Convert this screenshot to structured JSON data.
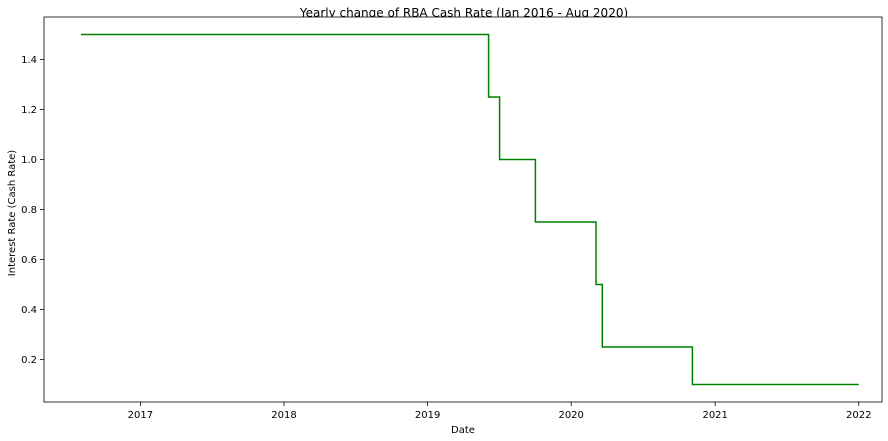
{
  "chart_data": {
    "type": "line",
    "title": "Yearly change of RBA Cash Rate (Jan 2016 - Aug 2020)",
    "xlabel": "Date",
    "ylabel": "Interest Rate (Cash Rate)",
    "xlim": [
      "2016-05-01",
      "2022-03-01"
    ],
    "ylim": [
      0.03,
      1.57
    ],
    "x_ticks": [
      {
        "date": "2017-01-01",
        "label": "2017"
      },
      {
        "date": "2018-01-01",
        "label": "2018"
      },
      {
        "date": "2019-01-01",
        "label": "2019"
      },
      {
        "date": "2020-01-01",
        "label": "2020"
      },
      {
        "date": "2021-01-01",
        "label": "2021"
      },
      {
        "date": "2022-01-01",
        "label": "2022"
      }
    ],
    "y_ticks": [
      {
        "value": 0.2,
        "label": "0.2"
      },
      {
        "value": 0.4,
        "label": "0.4"
      },
      {
        "value": 0.6,
        "label": "0.6"
      },
      {
        "value": 0.8,
        "label": "0.8"
      },
      {
        "value": 1.0,
        "label": "1.0"
      },
      {
        "value": 1.2,
        "label": "1.2"
      },
      {
        "value": 1.4,
        "label": "1.4"
      }
    ],
    "grid": false,
    "step": true,
    "series": [
      {
        "color": "#008000",
        "points": [
          {
            "x": "2016-08-03",
            "y": 1.5
          },
          {
            "x": "2019-06-05",
            "y": 1.25
          },
          {
            "x": "2019-07-03",
            "y": 1.0
          },
          {
            "x": "2019-10-02",
            "y": 0.75
          },
          {
            "x": "2020-03-04",
            "y": 0.5
          },
          {
            "x": "2020-03-20",
            "y": 0.25
          },
          {
            "x": "2020-11-04",
            "y": 0.1
          },
          {
            "x": "2022-01-01",
            "y": 0.1
          }
        ]
      }
    ]
  }
}
